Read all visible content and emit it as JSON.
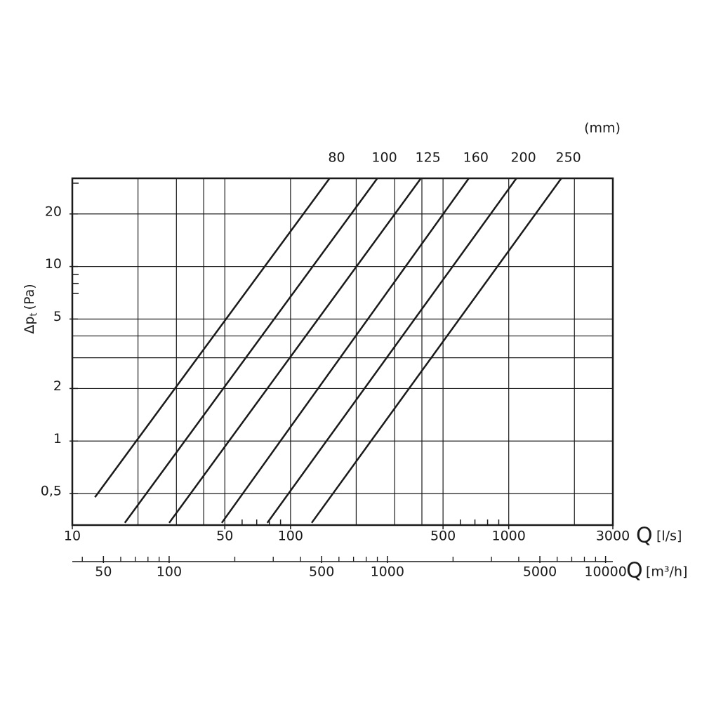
{
  "chart_data": {
    "type": "line",
    "unit_label": "(mm)",
    "ylabel": "Δp",
    "ylabel_sub": "t",
    "ylabel_unit": "(Pa)",
    "xlabel": "Q",
    "xlabel_unit": "[l/s]",
    "x2label": "Q",
    "x2label_unit": "[m³/h]",
    "xscale": "log",
    "yscale": "log",
    "xlim": [
      10,
      3000
    ],
    "ylim": [
      0.33,
      32
    ],
    "x2lim": [
      36,
      10800
    ],
    "xticks": [
      10,
      50,
      100,
      500,
      1000,
      3000
    ],
    "xminor": [
      60,
      70,
      80,
      90,
      600,
      700,
      800,
      900
    ],
    "xgrid": [
      20,
      30,
      40,
      50,
      100,
      200,
      300,
      400,
      500,
      1000,
      2000
    ],
    "x2ticks": [
      50,
      100,
      500,
      1000,
      5000,
      10000
    ],
    "x2minor": [
      40,
      60,
      70,
      80,
      90,
      200,
      300,
      400,
      600,
      700,
      800,
      900,
      2000,
      3000,
      4000,
      6000,
      7000,
      8000,
      9000
    ],
    "yticks": [
      {
        "value": 0.5,
        "label": "0,5"
      },
      1,
      2,
      5,
      10,
      20
    ],
    "yminor": [
      30,
      9,
      8,
      7
    ],
    "ygrid": [
      0.5,
      1,
      2,
      3,
      4,
      5,
      10,
      20
    ],
    "color": "#1a1a1a",
    "series": [
      {
        "name": "80",
        "x": [
          12.7,
          151
        ],
        "values": [
          0.477,
          32
        ]
      },
      {
        "name": "100",
        "x": [
          17.4,
          250
        ],
        "values": [
          0.34,
          32
        ]
      },
      {
        "name": "125",
        "x": [
          27.8,
          396
        ],
        "values": [
          0.34,
          32
        ]
      },
      {
        "name": "160",
        "x": [
          48.4,
          656
        ],
        "values": [
          0.34,
          32
        ]
      },
      {
        "name": "200",
        "x": [
          78.3,
          1084
        ],
        "values": [
          0.34,
          32
        ]
      },
      {
        "name": "250",
        "x": [
          125,
          1742
        ],
        "values": [
          0.34,
          32
        ]
      }
    ]
  }
}
